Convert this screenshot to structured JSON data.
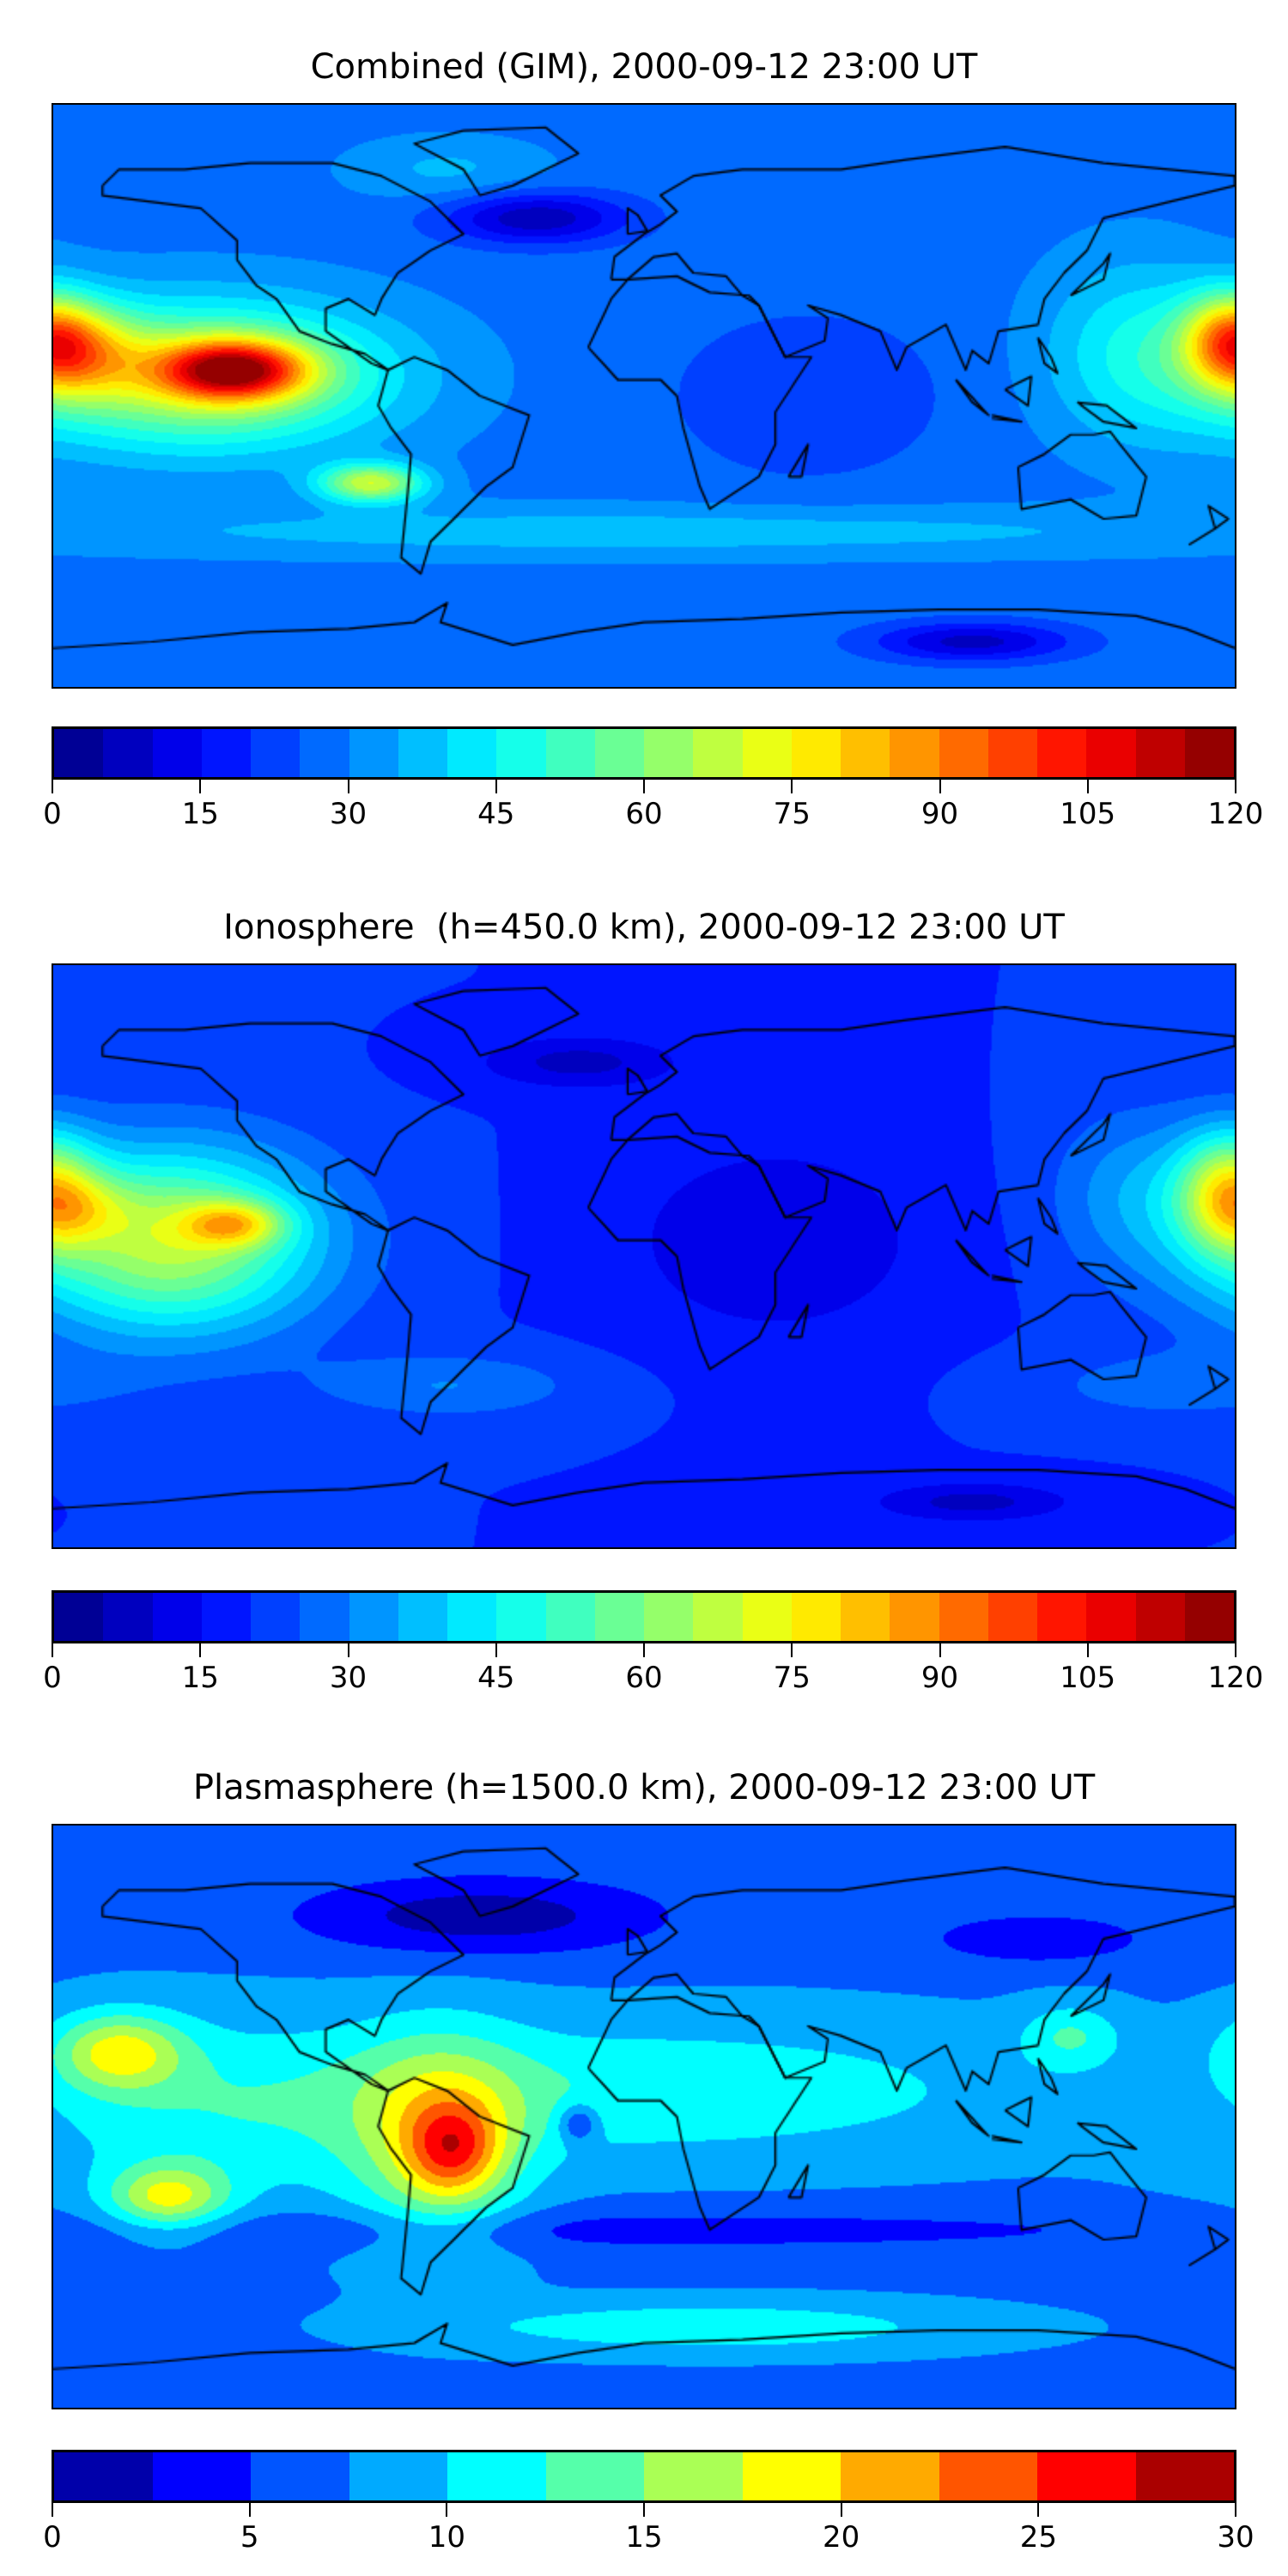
{
  "chart_data": [
    {
      "type": "heatmap",
      "title": "Combined (GIM), 2000-09-12 23:00 UT",
      "projection": "equirectangular",
      "lon_range": [
        -180,
        180
      ],
      "lat_range": [
        -90,
        90
      ],
      "colormap": "jet",
      "levels": {
        "min": 0,
        "max": 120,
        "step": 5
      },
      "colorbar_ticks": [
        "0",
        "15",
        "30",
        "45",
        "60",
        "75",
        "90",
        "105",
        "120"
      ],
      "field": {
        "base": 28,
        "features": [
          {
            "lon": -125,
            "lat": 8,
            "slon": 22,
            "slat": 9,
            "amp": 60
          },
          {
            "lon": -135,
            "lat": 6,
            "slon": 55,
            "slat": 22,
            "amp": 42
          },
          {
            "lon": -172,
            "lat": 14,
            "slon": 18,
            "slat": 14,
            "amp": 30
          },
          {
            "lon": -83,
            "lat": -27,
            "slon": 16,
            "slat": 6,
            "amp": 40
          },
          {
            "lon": 178,
            "lat": 18,
            "slon": 14,
            "slat": 14,
            "amp": 35
          },
          {
            "lon": 150,
            "lat": 15,
            "slon": 28,
            "slat": 28,
            "amp": 15
          },
          {
            "lon": -33,
            "lat": 55,
            "slon": 28,
            "slat": 8,
            "amp": -22
          },
          {
            "lon": 100,
            "lat": -76,
            "slon": 30,
            "slat": 6,
            "amp": -20
          },
          {
            "lon": 50,
            "lat": 0,
            "slon": 40,
            "slat": 25,
            "amp": -8
          },
          {
            "lon": 0,
            "lat": -42,
            "slon": 200,
            "slat": 8,
            "amp": 10
          },
          {
            "lon": -60,
            "lat": 70,
            "slon": 30,
            "slat": 10,
            "amp": 8
          }
        ]
      }
    },
    {
      "type": "heatmap",
      "title": "Ionosphere  (h=450.0 km), 2000-09-12 23:00 UT",
      "projection": "equirectangular",
      "lon_range": [
        -180,
        180
      ],
      "lat_range": [
        -90,
        90
      ],
      "colormap": "jet",
      "levels": {
        "min": 0,
        "max": 120,
        "step": 5
      },
      "colorbar_ticks": [
        "0",
        "15",
        "30",
        "45",
        "60",
        "75",
        "90",
        "105",
        "120"
      ],
      "field": {
        "base": 20,
        "features": [
          {
            "lon": -125,
            "lat": 10,
            "slon": 15,
            "slat": 7,
            "amp": 30
          },
          {
            "lon": -145,
            "lat": 5,
            "slon": 45,
            "slat": 28,
            "amp": 48
          },
          {
            "lon": -170,
            "lat": 15,
            "slon": 15,
            "slat": 10,
            "amp": 12
          },
          {
            "lon": 178,
            "lat": 20,
            "slon": 15,
            "slat": 18,
            "amp": 40
          },
          {
            "lon": 150,
            "lat": 20,
            "slon": 25,
            "slat": 25,
            "amp": 12
          },
          {
            "lon": 40,
            "lat": 5,
            "slon": 45,
            "slat": 30,
            "amp": -10
          },
          {
            "lon": -20,
            "lat": 60,
            "slon": 30,
            "slat": 8,
            "amp": -12
          },
          {
            "lon": 100,
            "lat": -76,
            "slon": 30,
            "slat": 6,
            "amp": -12
          },
          {
            "lon": -60,
            "lat": -40,
            "slon": 40,
            "slat": 10,
            "amp": 10
          },
          {
            "lon": 160,
            "lat": -40,
            "slon": 40,
            "slat": 10,
            "amp": 8
          }
        ]
      }
    },
    {
      "type": "heatmap",
      "title": "Plasmasphere (h=1500.0 km), 2000-09-12 23:00 UT",
      "projection": "equirectangular",
      "lon_range": [
        -180,
        180
      ],
      "lat_range": [
        -90,
        90
      ],
      "colormap": "jet",
      "levels": {
        "min": 0,
        "max": 30,
        "step": 2.5
      },
      "colorbar_ticks": [
        "0",
        "5",
        "10",
        "15",
        "20",
        "25",
        "30"
      ],
      "field": {
        "base": 7,
        "features": [
          {
            "lon": 0,
            "lat": 8,
            "slon": 120,
            "slat": 22,
            "amp": 5
          },
          {
            "lon": -58,
            "lat": -10,
            "slon": 14,
            "slat": 14,
            "amp": 9
          },
          {
            "lon": -62,
            "lat": -8,
            "slon": 26,
            "slat": 32,
            "amp": 9
          },
          {
            "lon": -160,
            "lat": 20,
            "slon": 20,
            "slat": 12,
            "amp": 10
          },
          {
            "lon": -145,
            "lat": -25,
            "slon": 18,
            "slat": 10,
            "amp": 10
          },
          {
            "lon": -130,
            "lat": 0,
            "slon": 60,
            "slat": 30,
            "amp": 4
          },
          {
            "lon": -50,
            "lat": 62,
            "slon": 55,
            "slat": 12,
            "amp": -6
          },
          {
            "lon": 120,
            "lat": 55,
            "slon": 35,
            "slat": 8,
            "amp": -4
          },
          {
            "lon": 0,
            "lat": -35,
            "slon": 200,
            "slat": 7,
            "amp": -3
          },
          {
            "lon": -20,
            "lat": -2,
            "slon": 6,
            "slat": 6,
            "amp": -6
          },
          {
            "lon": 20,
            "lat": -65,
            "slon": 80,
            "slat": 8,
            "amp": 5
          },
          {
            "lon": 130,
            "lat": 25,
            "slon": 15,
            "slat": 10,
            "amp": 5
          }
        ]
      }
    }
  ]
}
